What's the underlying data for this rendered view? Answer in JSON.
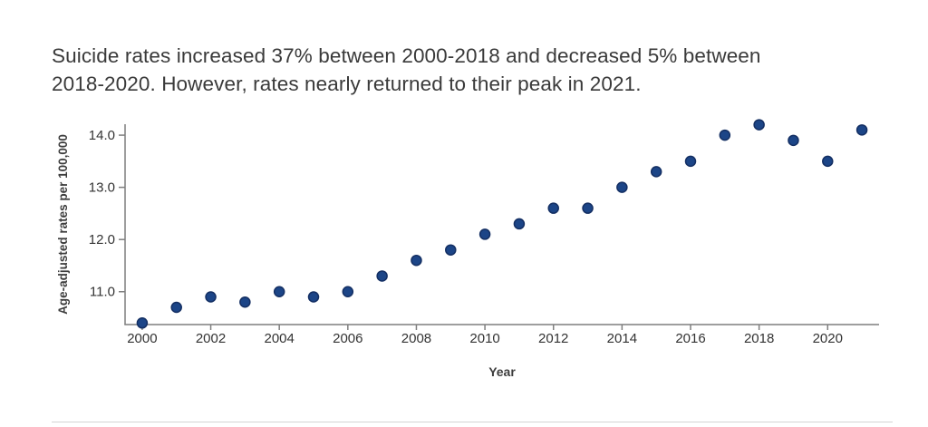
{
  "header": {
    "title_lines": [
      "Suicide rates increased 37% between 2000-2018 and decreased 5% between",
      "2018-2020. However, rates nearly returned to their peak in 2021."
    ]
  },
  "chart_data": {
    "type": "scatter",
    "title": "Suicide rates increased 37% between 2000-2018 and decreased 5% between 2018-2020. However, rates nearly returned to their peak in 2021.",
    "xlabel": "Year",
    "ylabel": "Age-adjusted rates per 100,000",
    "x": [
      2000,
      2001,
      2002,
      2003,
      2004,
      2005,
      2006,
      2007,
      2008,
      2009,
      2010,
      2011,
      2012,
      2013,
      2014,
      2015,
      2016,
      2017,
      2018,
      2019,
      2020,
      2021
    ],
    "values": [
      10.4,
      10.7,
      10.9,
      10.8,
      11.0,
      10.9,
      11.0,
      11.3,
      11.6,
      11.8,
      12.1,
      12.3,
      12.6,
      12.6,
      13.0,
      13.3,
      13.5,
      14.0,
      14.2,
      13.9,
      13.5,
      14.1
    ],
    "x_ticks": [
      2000,
      2002,
      2004,
      2006,
      2008,
      2010,
      2012,
      2014,
      2016,
      2018,
      2020
    ],
    "y_ticks": [
      11.0,
      12.0,
      13.0,
      14.0
    ],
    "y_tick_labels": [
      "11.0",
      "12.0",
      "13.0",
      "14.0"
    ],
    "xlim": [
      1999.5,
      2021.5
    ],
    "ylim": [
      10.37,
      14.21
    ],
    "grid": false,
    "legend_position": "none",
    "marker": {
      "shape": "circle",
      "radius": 5.5
    },
    "colors": {
      "point_fill": "#1c4587",
      "point_stroke": "#142f63",
      "axis": "#7f7f7f",
      "tick_label": "#333333",
      "axis_title": "#3d3d3d",
      "title_text": "#3a3a3a",
      "divider": "#d4d4d4",
      "background": "#ffffff"
    }
  }
}
